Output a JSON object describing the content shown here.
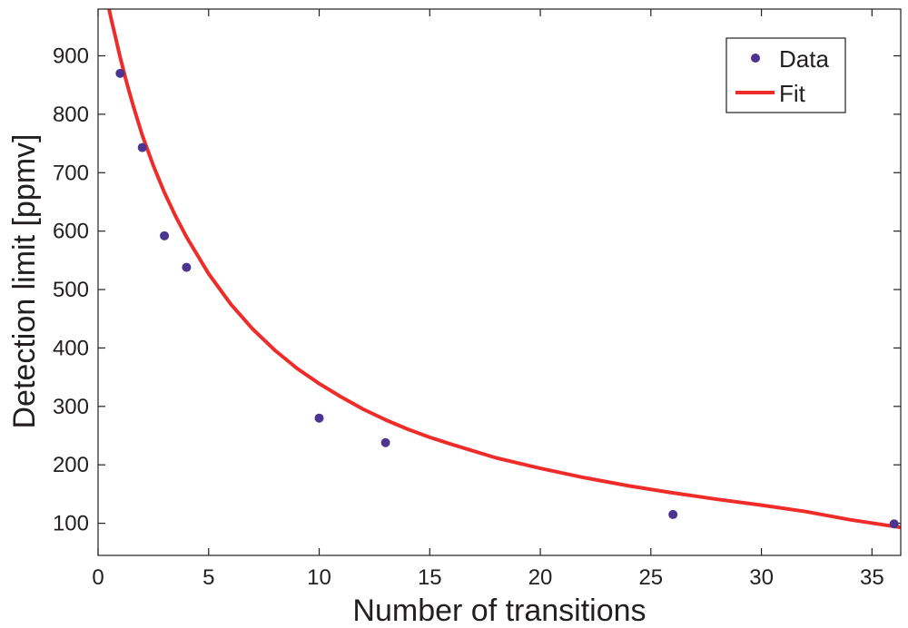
{
  "chart_data": {
    "type": "scatter",
    "title": "",
    "xlabel": "Number of transitions",
    "ylabel": "Detection limit [ppmv]",
    "xlim": [
      0,
      36.3
    ],
    "ylim": [
      45,
      980
    ],
    "xticks": [
      0,
      5,
      10,
      15,
      20,
      25,
      30,
      35
    ],
    "yticks": [
      100,
      200,
      300,
      400,
      500,
      600,
      700,
      800,
      900
    ],
    "grid": false,
    "legend_position": "top-right",
    "series": [
      {
        "name": "Data",
        "kind": "markers",
        "color": "#4b3590",
        "x": [
          1,
          2,
          3,
          4,
          10,
          13,
          26,
          36
        ],
        "y": [
          870,
          743,
          592,
          538,
          280,
          238,
          115,
          99
        ]
      },
      {
        "name": "Fit",
        "kind": "line",
        "color": "#ee2d2a",
        "x": [
          0.45,
          0.6,
          0.8,
          1,
          1.3,
          1.6,
          2,
          2.5,
          3,
          3.5,
          4,
          5,
          6,
          7,
          8,
          9,
          10,
          11,
          12,
          13,
          14,
          15,
          16,
          18,
          20,
          22,
          24,
          26,
          28,
          30,
          32,
          34,
          36.3
        ],
        "y": [
          988,
          962,
          930,
          897,
          853,
          813,
          764,
          712,
          666,
          626,
          590,
          527,
          475,
          432,
          396,
          365,
          339,
          316,
          295,
          277,
          261,
          247,
          235,
          212,
          194,
          178,
          164,
          152,
          141,
          131,
          120,
          106,
          93
        ]
      }
    ]
  }
}
